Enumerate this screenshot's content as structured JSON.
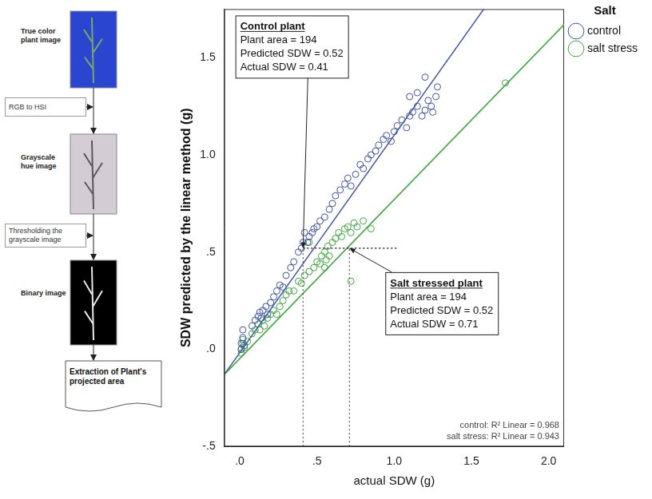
{
  "flowchart": {
    "steps": [
      {
        "kind": "image",
        "label": "True color plant image"
      },
      {
        "kind": "process",
        "label": "RGB to HSI"
      },
      {
        "kind": "image",
        "label": "Grayscale hue image"
      },
      {
        "kind": "process",
        "label": "Thresholding the grayscale image"
      },
      {
        "kind": "image",
        "label": "Binary image"
      },
      {
        "kind": "document",
        "label": "Extraction of Plant's projected area"
      }
    ]
  },
  "chart_data": {
    "type": "scatter",
    "x_label": "actual SDW (g)",
    "y_label": "SDW predicted by the linear method (g)",
    "legend": "right",
    "legend_title": "Salt",
    "grid": false,
    "xlim": [
      -0.1,
      2.1
    ],
    "xticks": [
      {
        "value": 0,
        "label": ".0"
      },
      {
        "value": 0.5,
        "label": ".5"
      },
      {
        "value": 1,
        "label": "1.0"
      },
      {
        "value": 1.5,
        "label": "1.5"
      },
      {
        "value": 2,
        "label": "2.0"
      }
    ],
    "ylim": [
      -0.5,
      1.75
    ],
    "yticks": [
      {
        "value": -0.5,
        "label": "-.5"
      },
      {
        "value": 0,
        "label": ".0"
      },
      {
        "value": 0.5,
        "label": ".5"
      },
      {
        "value": 1,
        "label": "1.0"
      },
      {
        "value": 1.5,
        "label": "1.5"
      }
    ],
    "series": [
      {
        "name": "control",
        "color": "#3f51a3",
        "marker": "circle",
        "x": [
          0.01,
          0.01,
          0.02,
          0.02,
          0.03,
          0.08,
          0.1,
          0.12,
          0.13,
          0.14,
          0.15,
          0.17,
          0.18,
          0.2,
          0.22,
          0.24,
          0.26,
          0.28,
          0.3,
          0.33,
          0.35,
          0.38,
          0.4,
          0.41,
          0.42,
          0.44,
          0.45,
          0.47,
          0.48,
          0.5,
          0.52,
          0.55,
          0.58,
          0.6,
          0.62,
          0.65,
          0.68,
          0.7,
          0.72,
          0.75,
          0.78,
          0.8,
          0.83,
          0.85,
          0.88,
          0.9,
          0.93,
          0.95,
          0.98,
          1.0,
          1.02,
          1.05,
          1.08,
          1.1,
          1.12,
          1.15,
          1.18,
          1.2,
          1.22,
          1.24,
          1.25,
          1.27,
          1.28,
          1.2,
          1.15,
          1.1
        ],
        "values": [
          0.0,
          0.03,
          0.06,
          0.1,
          0.02,
          0.12,
          0.15,
          0.17,
          0.19,
          0.16,
          0.2,
          0.22,
          0.18,
          0.24,
          0.27,
          0.3,
          0.33,
          0.32,
          0.38,
          0.42,
          0.45,
          0.5,
          0.52,
          0.55,
          0.6,
          0.55,
          0.58,
          0.6,
          0.62,
          0.63,
          0.66,
          0.68,
          0.72,
          0.75,
          0.79,
          0.82,
          0.85,
          0.88,
          0.84,
          0.9,
          0.95,
          0.93,
          0.98,
          1.0,
          1.02,
          1.05,
          1.08,
          1.1,
          1.07,
          1.12,
          1.15,
          1.18,
          1.14,
          1.2,
          1.22,
          1.25,
          1.2,
          1.23,
          1.28,
          1.25,
          1.22,
          1.3,
          1.35,
          1.4,
          1.32,
          1.3
        ],
        "fit_line": {
          "x": [
            -0.1,
            1.58
          ],
          "values": [
            -0.13,
            1.75
          ]
        }
      },
      {
        "name": "salt stress",
        "color": "#3fa53f",
        "marker": "circle",
        "x": [
          0.01,
          0.01,
          0.02,
          0.02,
          0.03,
          0.05,
          0.08,
          0.1,
          0.12,
          0.13,
          0.15,
          0.16,
          0.18,
          0.2,
          0.22,
          0.24,
          0.26,
          0.28,
          0.3,
          0.32,
          0.35,
          0.38,
          0.4,
          0.42,
          0.45,
          0.48,
          0.5,
          0.52,
          0.53,
          0.55,
          0.55,
          0.56,
          0.57,
          0.58,
          0.6,
          0.62,
          0.64,
          0.66,
          0.68,
          0.7,
          0.72,
          0.74,
          0.76,
          0.8,
          0.85,
          0.72,
          0.45,
          1.72
        ],
        "values": [
          -0.02,
          0.0,
          0.03,
          0.05,
          0.01,
          0.04,
          0.08,
          0.1,
          0.13,
          0.1,
          0.15,
          0.12,
          0.16,
          0.18,
          0.2,
          0.18,
          0.22,
          0.25,
          0.28,
          0.3,
          0.3,
          0.35,
          0.34,
          0.38,
          0.4,
          0.42,
          0.45,
          0.44,
          0.48,
          0.5,
          0.42,
          0.46,
          0.53,
          0.48,
          0.55,
          0.57,
          0.6,
          0.58,
          0.62,
          0.63,
          0.6,
          0.65,
          0.63,
          0.66,
          0.62,
          0.35,
          0.55,
          1.37
        ],
        "fit_line": {
          "x": [
            -0.1,
            2.1
          ],
          "values": [
            -0.13,
            1.67
          ]
        }
      }
    ],
    "callouts": [
      {
        "title": "Control plant",
        "lines": [
          "Plant area = 194",
          "Predicted SDW = 0.52",
          "Actual SDW = 0.41"
        ],
        "predicted_sdw": 0.52,
        "actual_sdw": 0.41
      },
      {
        "title": "Salt stressed plant",
        "lines": [
          "Plant area = 194",
          "Predicted SDW = 0.52",
          "Actual SDW = 0.71"
        ],
        "predicted_sdw": 0.52,
        "actual_sdw": 0.71
      }
    ],
    "annotations": [
      "control: R² Linear = 0.968",
      "salt stress: R² Linear = 0.943"
    ]
  }
}
